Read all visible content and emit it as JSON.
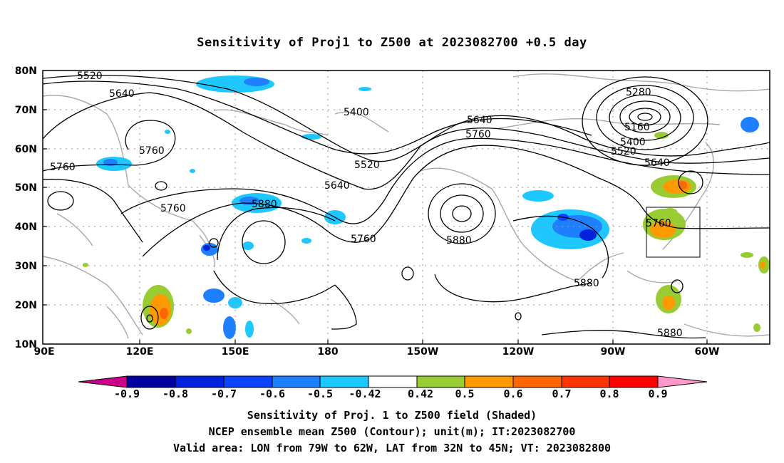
{
  "title": "Sensitivity of Proj1 to Z500 at 2023082700 +0.5 day",
  "lat_labels": [
    "80N",
    "70N",
    "60N",
    "50N",
    "40N",
    "30N",
    "20N",
    "10N"
  ],
  "lon_labels": [
    "90E",
    "120E",
    "150E",
    "180",
    "150W",
    "120W",
    "90W",
    "60W"
  ],
  "contour_labels": [
    "5520",
    "5640",
    "5400",
    "5760",
    "5760",
    "5520",
    "5640",
    "5640",
    "5760",
    "5880",
    "5760",
    "5760",
    "5880",
    "5880",
    "5280",
    "5160",
    "5400",
    "5520",
    "5640",
    "5760",
    "5880"
  ],
  "colorbar": {
    "labels": [
      "-0.9",
      "-0.8",
      "-0.7",
      "-0.6",
      "-0.5",
      "-0.42",
      "0.42",
      "0.5",
      "0.6",
      "0.7",
      "0.8",
      "0.9"
    ],
    "colors": [
      "#cc0088",
      "#0000a0",
      "#0022dd",
      "#0a44ff",
      "#1e7fff",
      "#1ec8ff",
      "#ffffff",
      "#99cc33",
      "#ff9900",
      "#ff6600",
      "#ff3300",
      "#ff0000",
      "#ff99cc"
    ]
  },
  "captions": [
    "Sensitivity of Proj. 1 to Z500 field (Shaded)",
    "NCEP ensemble mean Z500 (Contour); unit(m); IT:2023082700",
    "Valid area: LON from 79W to 62W, LAT from 32N to 45N; VT: 2023082800"
  ]
}
